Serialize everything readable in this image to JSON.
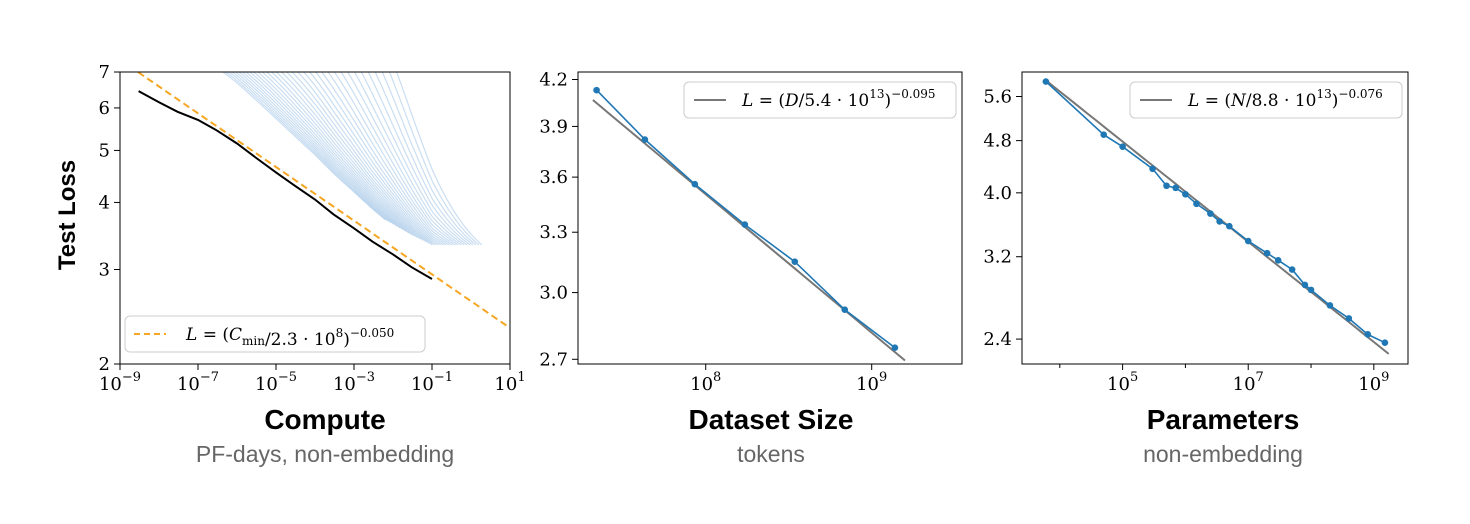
{
  "figure": {
    "ylabel": "Test Loss"
  },
  "chart_data": [
    {
      "type": "line",
      "xscale": "log",
      "yscale": "log",
      "xlim": [
        1e-09,
        10
      ],
      "ylim": [
        2,
        7
      ],
      "x_tick_labels": [
        "10−9",
        "10−7",
        "10−5",
        "10−3",
        "10−1",
        "101"
      ],
      "x_ticks": [
        1e-09,
        1e-07,
        1e-05,
        0.001,
        0.1,
        10
      ],
      "y_ticks": [
        2,
        3,
        4,
        5,
        6,
        7
      ],
      "y_tick_labels": [
        "2",
        "3",
        "4",
        "5",
        "6",
        "7"
      ],
      "xlabel": "Compute",
      "xlabel_sub": "PF-days, non-embedding",
      "ylabel": "Test Loss",
      "legend": {
        "position": "lower-left",
        "text": "L = (Cmin/2.3 · 108)−0.050"
      },
      "colors": {
        "fit": "#f5a623",
        "frontier": "#000000",
        "runs": "#9ec3e6"
      },
      "fit": {
        "name": "L = (Cmin/2.3 · 108)−0.050",
        "c0": 230000000.0,
        "exponent": -0.05
      },
      "frontier": {
        "x": [
          3e-09,
          1e-08,
          3e-08,
          1e-07,
          3e-07,
          1e-06,
          3e-06,
          1e-05,
          3e-05,
          0.0001,
          0.0003,
          0.001,
          0.003,
          0.01,
          0.03,
          0.1
        ],
        "y": [
          6.45,
          6.15,
          5.9,
          5.7,
          5.45,
          5.15,
          4.85,
          4.55,
          4.3,
          4.05,
          3.8,
          3.58,
          3.38,
          3.2,
          3.03,
          2.88
        ]
      }
    },
    {
      "type": "line",
      "xscale": "log",
      "yscale": "log",
      "xlim": [
        17000000.0,
        3500000000.0
      ],
      "ylim": [
        2.68,
        4.25
      ],
      "x_ticks": [
        100000000.0,
        1000000000.0
      ],
      "x_tick_labels": [
        "108",
        "109"
      ],
      "y_ticks": [
        2.7,
        3.0,
        3.3,
        3.6,
        3.9,
        4.2
      ],
      "y_tick_labels": [
        "2.7",
        "3.0",
        "3.3",
        "3.6",
        "3.9",
        "4.2"
      ],
      "xlabel": "Dataset Size",
      "xlabel_sub": "tokens",
      "legend": {
        "position": "upper-right",
        "text": "L = (D/5.4 · 1013)−0.095"
      },
      "colors": {
        "fit": "#777777",
        "data": "#1f77b4"
      },
      "fit": {
        "name": "L = (D/5.4 · 1013)−0.095",
        "c0": 54000000000000.0,
        "exponent": -0.095
      },
      "series": [
        {
          "x": [
            22000000.0,
            43000000.0,
            86000000.0,
            172000000.0,
            344000000.0,
            688000000.0,
            1380000000.0
          ],
          "y": [
            4.13,
            3.82,
            3.56,
            3.34,
            3.15,
            2.92,
            2.75
          ]
        }
      ]
    },
    {
      "type": "line",
      "xscale": "log",
      "yscale": "log",
      "xlim": [
        2500.0,
        3500000000.0
      ],
      "ylim": [
        2.2,
        6.1
      ],
      "x_ticks": [
        100000.0,
        10000000.0,
        1000000000.0
      ],
      "x_tick_labels": [
        "105",
        "107",
        "109"
      ],
      "y_ticks": [
        2.4,
        3.2,
        4.0,
        4.8,
        5.6
      ],
      "y_tick_labels": [
        "2.4",
        "3.2",
        "4.0",
        "4.8",
        "5.6"
      ],
      "xlabel": "Parameters",
      "xlabel_sub": "non-embedding",
      "legend": {
        "position": "upper-right",
        "text": "L = (N/8.8 · 1013)−0.076"
      },
      "colors": {
        "fit": "#777777",
        "data": "#1f77b4"
      },
      "fit": {
        "name": "L = (N/8.8 · 1013)−0.076",
        "c0": 88000000000000.0,
        "exponent": -0.076
      },
      "series": [
        {
          "x": [
            6000.0,
            50000.0,
            100000.0,
            300000.0,
            500000.0,
            700000.0,
            1000000.0,
            1500000.0,
            2500000.0,
            3500000.0,
            5000000.0,
            10000000.0,
            20000000.0,
            30000000.0,
            50000000.0,
            80000000.0,
            100000000.0,
            200000000.0,
            400000000.0,
            800000000.0,
            1500000000.0
          ],
          "y": [
            5.9,
            4.9,
            4.7,
            4.35,
            4.1,
            4.07,
            3.98,
            3.85,
            3.72,
            3.62,
            3.56,
            3.38,
            3.24,
            3.16,
            3.06,
            2.9,
            2.85,
            2.7,
            2.58,
            2.44,
            2.37
          ]
        }
      ]
    }
  ]
}
